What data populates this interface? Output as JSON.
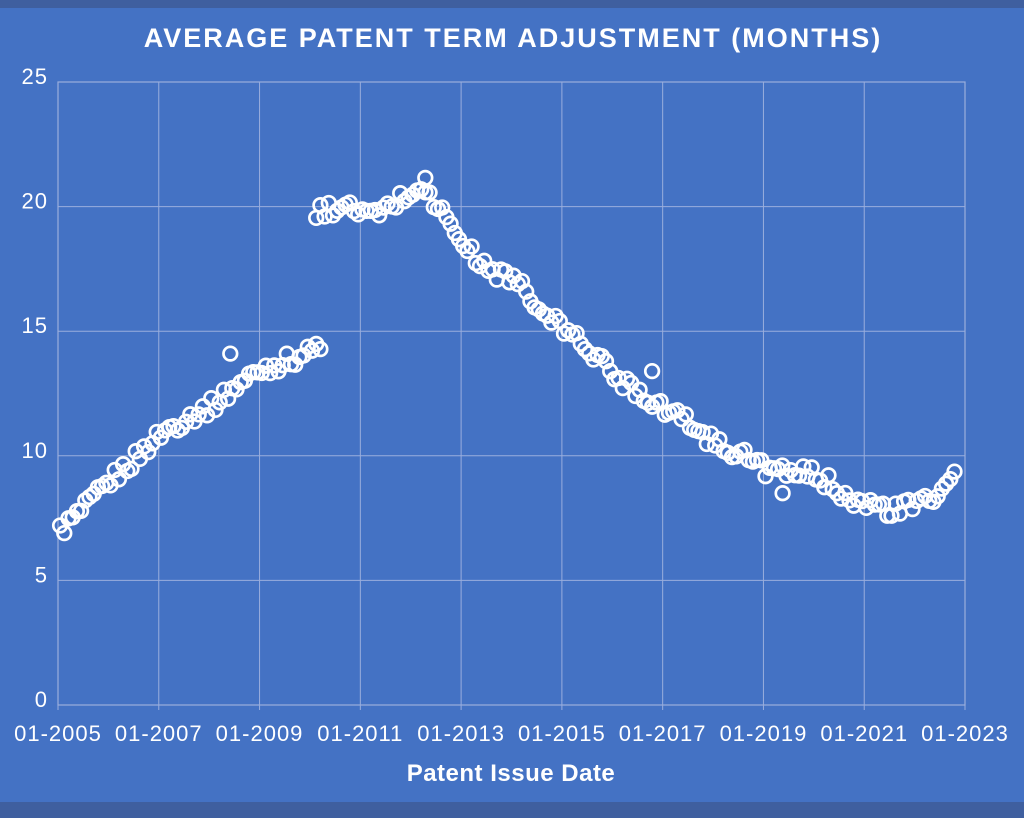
{
  "page": {
    "background_color": "#4472C4",
    "band_color": "#3F5F9F",
    "text_color": "#FFFFFF",
    "grid_color": "#9AAEDD"
  },
  "chart_data": {
    "type": "scatter",
    "title": "AVERAGE PATENT TERM ADJUSTMENT (MONTHS)",
    "xlabel": "Patent Issue Date",
    "ylabel": "",
    "legend": "none",
    "grid": true,
    "x_tick_labels": [
      "01-2005",
      "01-2007",
      "01-2009",
      "01-2011",
      "01-2013",
      "01-2015",
      "01-2017",
      "01-2019",
      "01-2021",
      "01-2023"
    ],
    "x_tick_years": [
      2005,
      2007,
      2009,
      2011,
      2013,
      2015,
      2017,
      2019,
      2021,
      2023
    ],
    "x_range_years": [
      2005,
      2023
    ],
    "y_ticks": [
      0,
      5,
      10,
      15,
      20,
      25
    ],
    "ylim": [
      0,
      25
    ],
    "marker": {
      "shape": "open-circle",
      "color": "#FFFFFF",
      "radius": 6.8,
      "stroke_width": 2.7
    },
    "jitter_amplitude": 0.32,
    "series": [
      {
        "name": "avg-pta-monthly-pre-2010-jump",
        "start_year": 2005,
        "start_month": 1,
        "cadence_months": 1,
        "values": [
          7.0,
          7.15,
          7.3,
          7.45,
          7.6,
          7.75,
          7.9,
          8.08,
          8.27,
          8.45,
          8.63,
          8.82,
          9.0,
          9.15,
          9.3,
          9.45,
          9.6,
          9.75,
          9.9,
          10.07,
          10.23,
          10.4,
          10.57,
          10.73,
          10.9,
          11.0,
          11.1,
          11.2,
          11.3,
          11.4,
          11.5,
          11.58,
          11.67,
          11.75,
          11.83,
          11.92,
          12.0,
          12.13,
          12.27,
          12.4,
          12.53,
          12.67,
          12.8,
          12.92,
          13.03,
          13.15,
          13.27,
          13.38,
          13.5,
          13.55,
          13.6,
          13.65,
          13.7,
          13.75,
          13.8,
          13.87,
          13.93,
          14.0,
          14.07,
          14.13,
          14.2,
          14.35,
          14.5
        ]
      },
      {
        "name": "avg-pta-monthly-post-2010-jump",
        "start_year": 2010,
        "start_month": 2,
        "cadence_months": 1,
        "values": [
          19.7,
          19.76,
          19.82,
          19.88,
          19.94,
          20.0,
          19.97,
          19.93,
          19.9,
          19.87,
          19.83,
          19.8,
          19.73,
          19.67,
          19.6,
          19.72,
          19.83,
          19.95,
          20.07,
          20.18,
          20.3,
          20.4,
          20.5,
          20.6,
          20.7,
          20.8,
          20.6,
          20.4,
          20.2,
          20.0,
          19.75,
          19.5,
          19.25,
          19.0,
          18.75,
          18.5,
          18.32,
          18.13,
          17.95,
          17.77,
          17.58,
          17.4,
          17.37,
          17.33,
          17.3,
          17.27,
          17.23,
          17.2,
          16.97,
          16.73,
          16.5,
          16.27,
          16.03,
          15.8,
          15.68,
          15.57,
          15.45,
          15.33,
          15.22,
          15.1,
          14.97,
          14.83,
          14.7,
          14.57,
          14.43,
          14.3,
          14.12,
          13.93,
          13.75,
          13.57,
          13.38,
          13.2,
          13.1,
          13.0,
          12.9,
          12.8,
          12.7,
          12.6,
          12.48,
          12.37,
          12.25,
          12.13,
          12.02,
          11.9,
          11.8,
          11.7,
          11.6,
          11.5,
          11.4,
          11.3,
          11.17,
          11.03,
          10.9,
          10.77,
          10.63,
          10.5,
          10.43,
          10.37,
          10.3,
          10.23,
          10.17,
          10.1,
          10.0,
          9.9,
          9.8,
          9.7,
          9.6,
          9.5,
          9.45,
          9.4,
          9.35,
          9.3,
          9.25,
          9.2,
          9.25,
          9.3,
          9.3,
          9.28,
          9.25,
          9.2,
          9.1,
          9.0,
          8.9,
          8.8,
          8.7,
          8.6,
          8.5,
          8.4,
          8.3,
          8.2,
          8.1,
          8.0,
          7.97,
          7.93,
          7.9,
          7.87,
          7.83,
          7.8,
          7.83,
          7.87,
          7.9,
          7.93,
          7.97,
          8.0,
          8.08,
          8.17,
          8.25,
          8.33,
          8.42,
          8.5,
          8.83,
          9.17,
          9.55
        ]
      },
      {
        "name": "visible-outliers",
        "points": [
          [
            2008.42,
            14.1
          ],
          [
            2012.29,
            21.15
          ],
          [
            2016.79,
            13.4
          ],
          [
            2019.38,
            8.5
          ]
        ]
      }
    ]
  }
}
